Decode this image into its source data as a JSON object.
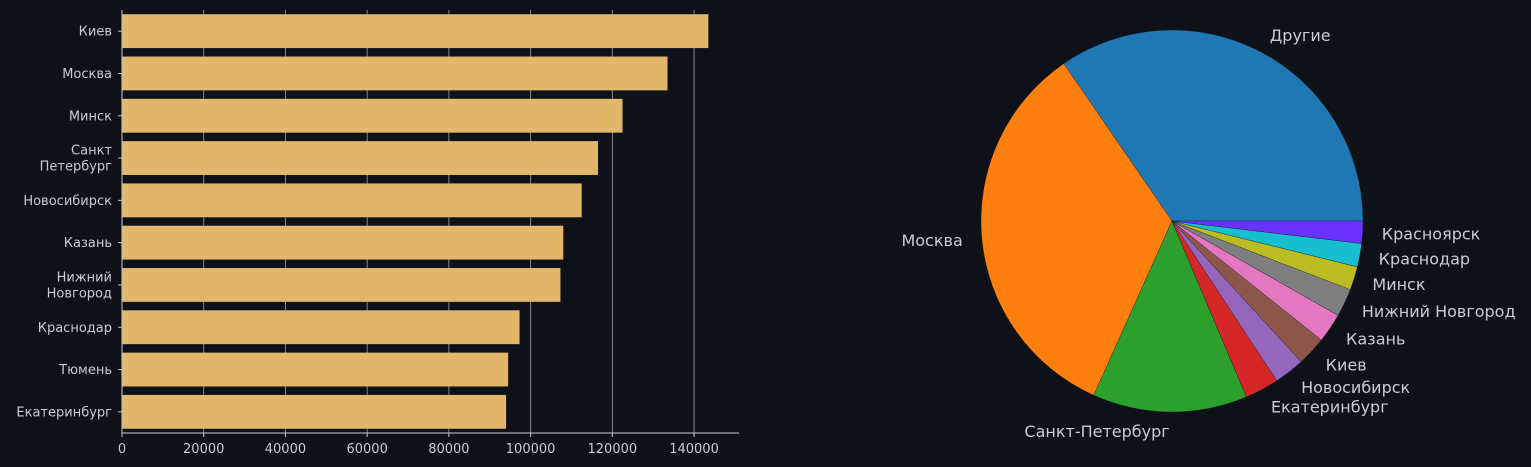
{
  "theme": {
    "background": "#0e1117",
    "text": "#c9ccd3",
    "bar_color": "#e3b76a",
    "grid_color": "#aaaaaa"
  },
  "chart_data": [
    {
      "type": "bar",
      "orientation": "horizontal",
      "categories": [
        "Киев",
        "Москва",
        "Минск",
        "Санкт\nПетербург",
        "Новосибирск",
        "Казань",
        "Нижний\nНовгород",
        "Краснодар",
        "Тюмень",
        "Екатеринбург"
      ],
      "values": [
        143500,
        133500,
        122500,
        116500,
        112500,
        108000,
        107300,
        97300,
        94500,
        94000
      ],
      "xlim": [
        0,
        151000
      ],
      "xticks": [
        0,
        20000,
        40000,
        60000,
        80000,
        100000,
        120000,
        140000
      ],
      "xtick_labels": [
        "0",
        "20000",
        "40000",
        "60000",
        "80000",
        "100000",
        "120000",
        "140000"
      ],
      "grid": "x",
      "color": "#e3b76a"
    },
    {
      "type": "pie",
      "labels": [
        "Другие",
        "Москва",
        "Санкт-Петербург",
        "Екатеринбург",
        "Новосибирск",
        "Киев",
        "Казань",
        "Нижний Новгород",
        "Минск",
        "Краснодар",
        "Красноярск"
      ],
      "values": [
        34.9,
        34.0,
        13.2,
        2.9,
        2.6,
        2.5,
        2.5,
        2.4,
        2.0,
        2.0,
        1.9
      ],
      "colors": [
        "#1f77b4",
        "#ff7f0e",
        "#2ca02c",
        "#d62728",
        "#9467bd",
        "#8c564b",
        "#e377c2",
        "#7f7f7f",
        "#bcbd22",
        "#17becf",
        "#6a32ff"
      ],
      "start_angle": 0,
      "direction": "counterclockwise"
    }
  ]
}
